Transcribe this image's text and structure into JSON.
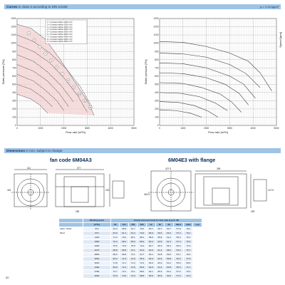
{
  "curves_section": {
    "title": "Curves",
    "note": "in class 2 according to DIN 24166",
    "density": "ρ = 1.15 kg/m³"
  },
  "chart_data": [
    {
      "type": "line",
      "xlabel": "Flow rate [m³/h]",
      "ylabel": "Static pressure [Pa]",
      "xlim": [
        0,
        5000
      ],
      "ylim": [
        0,
        1300
      ],
      "x_ticks": [
        "0",
        "1000",
        "2000",
        "3000",
        "4000",
        "5000"
      ],
      "y_ticks": [
        "0",
        "100",
        "200",
        "300",
        "400",
        "500",
        "600",
        "700",
        "800",
        "900",
        "1000",
        "1100",
        "1200",
        "1300"
      ],
      "legend_items": [
        "1 = Constant airflow 1000 m³/h",
        "2 = Constant airflow 1500 m³/h",
        "3 = Constant airflow 2000 m³/h",
        "4 = Constant airflow 2500 m³/h",
        "5 = Constant airflow 3000 m³/h",
        "6 = Constant airflow 3500 m³/h",
        "7 = Constant airflow 4000 m³/h",
        "8 = Constant airflow 4500 m³/h",
        "9 = Constant airflow 5000 m³/h"
      ],
      "curve_labels": [
        "1",
        "2",
        "3",
        "4",
        "5",
        "6",
        "7",
        "8",
        "9",
        "10",
        "11",
        "12"
      ],
      "series": [
        {
          "values": [
            [
              0,
              1230
            ],
            [
              600,
              1180
            ],
            [
              1200,
              1050
            ],
            [
              1800,
              820
            ],
            [
              2400,
              560
            ],
            [
              3000,
              300
            ],
            [
              3300,
              120
            ]
          ]
        },
        {
          "values": [
            [
              0,
              1100
            ],
            [
              700,
              1020
            ],
            [
              1400,
              880
            ],
            [
              2100,
              690
            ],
            [
              2700,
              470
            ],
            [
              3200,
              230
            ]
          ]
        },
        {
          "values": [
            [
              0,
              980
            ],
            [
              700,
              900
            ],
            [
              1400,
              760
            ],
            [
              2000,
              580
            ],
            [
              2600,
              360
            ],
            [
              3000,
              160
            ]
          ]
        },
        {
          "values": [
            [
              0,
              860
            ],
            [
              700,
              780
            ],
            [
              1300,
              650
            ],
            [
              1900,
              480
            ],
            [
              2400,
              290
            ]
          ]
        },
        {
          "values": [
            [
              0,
              740
            ],
            [
              700,
              660
            ],
            [
              1300,
              540
            ],
            [
              1800,
              390
            ],
            [
              2200,
              230
            ]
          ]
        },
        {
          "values": [
            [
              0,
              620
            ],
            [
              700,
              540
            ],
            [
              1200,
              430
            ],
            [
              1700,
              300
            ],
            [
              2000,
              180
            ]
          ]
        },
        {
          "values": [
            [
              0,
              500
            ],
            [
              600,
              440
            ],
            [
              1100,
              340
            ],
            [
              1500,
              230
            ]
          ]
        },
        {
          "values": [
            [
              0,
              380
            ],
            [
              600,
              320
            ],
            [
              1000,
              240
            ],
            [
              1300,
              150
            ]
          ]
        }
      ]
    },
    {
      "type": "line",
      "xlabel": "Flow rate [m³/h]",
      "ylabel": "Static pressure [Pa]",
      "y2label": "Speed [rpm]",
      "xlim": [
        0,
        5000
      ],
      "ylim": [
        0,
        1300
      ],
      "x_ticks": [
        "0",
        "1000",
        "2000",
        "3000",
        "4000",
        "5000"
      ],
      "y_ticks": [
        "0",
        "100",
        "200",
        "300",
        "400",
        "500",
        "600",
        "700",
        "800",
        "900",
        "1000",
        "1100",
        "1200",
        "1300"
      ],
      "series": [
        {
          "values": [
            [
              0,
              1020
            ],
            [
              1000,
              1010
            ],
            [
              2000,
              960
            ],
            [
              3000,
              880
            ],
            [
              3800,
              780
            ],
            [
              4300,
              640
            ],
            [
              4800,
              420
            ]
          ]
        },
        {
          "values": [
            [
              0,
              880
            ],
            [
              1000,
              870
            ],
            [
              2000,
              830
            ],
            [
              3000,
              740
            ],
            [
              3700,
              630
            ],
            [
              4300,
              460
            ]
          ]
        },
        {
          "values": [
            [
              0,
              760
            ],
            [
              1000,
              750
            ],
            [
              2000,
              700
            ],
            [
              3000,
              600
            ],
            [
              3600,
              500
            ],
            [
              4100,
              330
            ]
          ]
        },
        {
          "values": [
            [
              0,
              640
            ],
            [
              1000,
              630
            ],
            [
              2000,
              580
            ],
            [
              2800,
              500
            ],
            [
              3400,
              390
            ],
            [
              3800,
              250
            ]
          ]
        },
        {
          "values": [
            [
              0,
              520
            ],
            [
              1000,
              510
            ],
            [
              1800,
              460
            ],
            [
              2600,
              380
            ],
            [
              3100,
              280
            ],
            [
              3500,
              160
            ]
          ]
        },
        {
          "values": [
            [
              0,
              400
            ],
            [
              900,
              390
            ],
            [
              1700,
              350
            ],
            [
              2400,
              270
            ],
            [
              2900,
              180
            ]
          ]
        },
        {
          "values": [
            [
              0,
              290
            ],
            [
              800,
              280
            ],
            [
              1500,
              240
            ],
            [
              2100,
              170
            ],
            [
              2500,
              100
            ]
          ]
        },
        {
          "values": [
            [
              0,
              190
            ],
            [
              700,
              180
            ],
            [
              1300,
              150
            ],
            [
              1800,
              100
            ]
          ]
        }
      ]
    }
  ],
  "dimensions_section": {
    "title": "Dimensions",
    "note": "in mm, subject to change"
  },
  "drawings": {
    "left_title": "fan code 6M04A3",
    "right_title": "6M04E3 with flange",
    "left_dims": [
      "411",
      "377",
      "415",
      "216",
      "180"
    ],
    "right_dims": [
      "427.5",
      "395",
      "343.5",
      "329",
      "147.5"
    ]
  },
  "table": {
    "head_left": "Working point",
    "head_right": "Sound pressure level for free side (Lp) in dB",
    "columns": [
      "[m³/h]",
      "63",
      "125",
      "250",
      "500",
      "1k",
      "2k",
      "4k",
      "8kHz",
      "[dB]",
      "LpA"
    ],
    "model_labels": [
      "230V / 50Hz",
      "50Hz"
    ],
    "rows": [
      [
        "610",
        "64.3",
        "65.8",
        "61.7",
        "70.0",
        "66.7",
        "66.7",
        "62.7",
        "57.8",
        "78.4"
      ],
      [
        "970",
        "63.6",
        "61.4",
        "61.2",
        "72.6",
        "66.9",
        "66.5",
        "63.4",
        "57.4",
        "79.1"
      ],
      [
        "1400",
        "71.3",
        "70.2",
        "60.1",
        "68.1",
        "68.9",
        "65.9",
        "61.2",
        "55.2",
        "75.1"
      ],
      [
        "1880",
        "75.3",
        "68.2",
        "59.6",
        "68.3",
        "66.4",
        "64.5",
        "61.3",
        "57.3",
        "75.6"
      ],
      [
        "2260",
        "75.6",
        "74.9",
        "75.9",
        "74.2",
        "60.7",
        "66.3",
        "65.4",
        "60.0",
        "71.6"
      ],
      [
        "2675",
        "68.8",
        "66.8",
        "72.1",
        "63.3",
        "62.9",
        "61.4",
        "58.2",
        "54.2",
        "70.7"
      ],
      [
        "2850",
        "68.0",
        "66.8",
        "72.1",
        "64.7",
        "63.1",
        "62.8",
        "59.0",
        "54.7",
        "70.5"
      ],
      [
        "3060",
        "69.4",
        "71.9",
        "72.6",
        "65.3",
        "64.6",
        "63.4",
        "59.8",
        "55.2",
        "71.5"
      ],
      [
        "3220",
        "71.8",
        "71.1",
        "71.3",
        "71.0",
        "63.9",
        "63.3",
        "61.2",
        "55.9",
        "69.6"
      ],
      [
        "3490",
        "69.9",
        "72.4",
        "73.5",
        "66.9",
        "64.9",
        "64.1",
        "60.8",
        "55.5",
        "71.7"
      ],
      [
        "2780",
        "72.7",
        "72.1",
        "73.1",
        "68.0",
        "64.1",
        "65.3",
        "62.4",
        "57.2",
        "72.0"
      ],
      [
        "4090",
        "75.0",
        "74.6",
        "74.3",
        "68.8",
        "65.9",
        "65.9",
        "62.5",
        "57.3",
        "72.3"
      ]
    ]
  },
  "page": {
    "number": "50"
  }
}
